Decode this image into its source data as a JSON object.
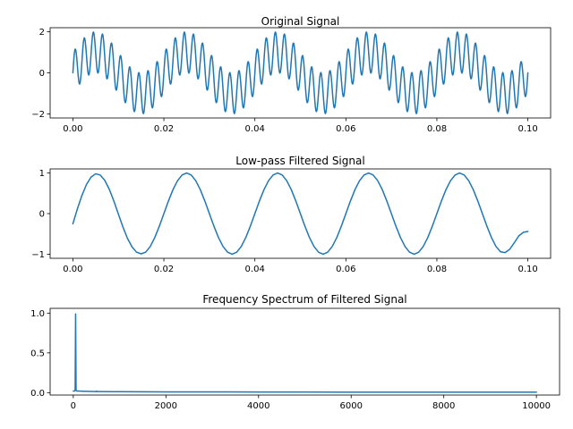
{
  "colors": {
    "series": "#1f77b4"
  },
  "chart_data": [
    {
      "type": "line",
      "title": "Original Signal",
      "xlabel": "",
      "ylabel": "",
      "xlim": [
        -0.005,
        0.105
      ],
      "ylim": [
        -2.2,
        2.2
      ],
      "xticks": [
        0.0,
        0.02,
        0.04,
        0.06,
        0.08,
        0.1
      ],
      "xtick_labels": [
        "0.00",
        "0.02",
        "0.04",
        "0.06",
        "0.08",
        "0.10"
      ],
      "yticks": [
        -2,
        0,
        2
      ],
      "ytick_labels": [
        "−2",
        "0",
        "2"
      ],
      "grid": false,
      "legend": "none",
      "series": [
        {
          "formula": "sin(2*pi*50*t) + sin(2*pi*500*t)",
          "x_start": 0.0,
          "x_end": 0.1,
          "x_step": 0.0001
        }
      ]
    },
    {
      "type": "line",
      "title": "Low-pass Filtered Signal",
      "xlabel": "",
      "ylabel": "",
      "xlim": [
        -0.005,
        0.105
      ],
      "ylim": [
        -1.1,
        1.1
      ],
      "xticks": [
        0.0,
        0.02,
        0.04,
        0.06,
        0.08,
        0.1
      ],
      "xtick_labels": [
        "0.00",
        "0.02",
        "0.04",
        "0.06",
        "0.08",
        "0.10"
      ],
      "yticks": [
        -1,
        0,
        1
      ],
      "ytick_labels": [
        "−1",
        "0",
        "1"
      ],
      "grid": false,
      "legend": "none",
      "series": [
        {
          "x": [
            0.0,
            0.001,
            0.002,
            0.003,
            0.004,
            0.005,
            0.006,
            0.007,
            0.008,
            0.009,
            0.01,
            0.011,
            0.012,
            0.013,
            0.014,
            0.015,
            0.016,
            0.017,
            0.018,
            0.019,
            0.02,
            0.021,
            0.022,
            0.023,
            0.024,
            0.025,
            0.026,
            0.027,
            0.028,
            0.029,
            0.03,
            0.031,
            0.032,
            0.033,
            0.034,
            0.035,
            0.036,
            0.037,
            0.038,
            0.039,
            0.04,
            0.041,
            0.042,
            0.043,
            0.044,
            0.045,
            0.046,
            0.047,
            0.048,
            0.049,
            0.05,
            0.051,
            0.052,
            0.053,
            0.054,
            0.055,
            0.056,
            0.057,
            0.058,
            0.059,
            0.06,
            0.061,
            0.062,
            0.063,
            0.064,
            0.065,
            0.066,
            0.067,
            0.068,
            0.069,
            0.07,
            0.071,
            0.072,
            0.073,
            0.074,
            0.075,
            0.076,
            0.077,
            0.078,
            0.079,
            0.08,
            0.081,
            0.082,
            0.083,
            0.084,
            0.085,
            0.086,
            0.087,
            0.088,
            0.089,
            0.09,
            0.091,
            0.092,
            0.093,
            0.094,
            0.095,
            0.096,
            0.097,
            0.098,
            0.099,
            0.1
          ],
          "y": [
            -0.25,
            0.12,
            0.45,
            0.72,
            0.9,
            0.98,
            0.95,
            0.82,
            0.6,
            0.31,
            -0.01,
            -0.33,
            -0.61,
            -0.82,
            -0.95,
            -0.99,
            -0.95,
            -0.81,
            -0.59,
            -0.31,
            0.0,
            0.31,
            0.59,
            0.81,
            0.95,
            1.0,
            0.95,
            0.81,
            0.59,
            0.31,
            0.0,
            -0.31,
            -0.59,
            -0.81,
            -0.95,
            -1.0,
            -0.95,
            -0.81,
            -0.59,
            -0.31,
            0.0,
            0.31,
            0.59,
            0.81,
            0.95,
            1.0,
            0.95,
            0.81,
            0.59,
            0.31,
            0.0,
            -0.31,
            -0.59,
            -0.81,
            -0.95,
            -1.0,
            -0.95,
            -0.81,
            -0.59,
            -0.31,
            0.0,
            0.31,
            0.59,
            0.81,
            0.95,
            1.0,
            0.95,
            0.81,
            0.59,
            0.31,
            0.0,
            -0.31,
            -0.59,
            -0.81,
            -0.95,
            -1.0,
            -0.95,
            -0.81,
            -0.59,
            -0.31,
            0.0,
            0.31,
            0.59,
            0.81,
            0.95,
            1.0,
            0.95,
            0.81,
            0.59,
            0.31,
            0.0,
            -0.31,
            -0.59,
            -0.81,
            -0.94,
            -0.96,
            -0.88,
            -0.72,
            -0.55,
            -0.46,
            -0.44
          ]
        }
      ]
    },
    {
      "type": "line",
      "title": "Frequency Spectrum of Filtered Signal",
      "xlabel": "",
      "ylabel": "",
      "xlim": [
        -500,
        10500
      ],
      "ylim": [
        -0.03,
        1.06
      ],
      "xticks": [
        0,
        2000,
        4000,
        6000,
        8000,
        10000
      ],
      "xtick_labels": [
        "0",
        "2000",
        "4000",
        "6000",
        "8000",
        "10000"
      ],
      "yticks": [
        0.0,
        0.5,
        1.0
      ],
      "ytick_labels": [
        "0.0",
        "0.5",
        "1.0"
      ],
      "grid": false,
      "legend": "none",
      "series": [
        {
          "x": [
            0,
            10,
            20,
            30,
            40,
            50,
            60,
            70,
            80,
            100,
            200,
            300,
            400,
            490,
            500,
            510,
            600,
            1000,
            2000,
            3000,
            4000,
            5000,
            6000,
            7000,
            8000,
            9000,
            10000
          ],
          "y": [
            0.02,
            0.02,
            0.02,
            0.02,
            0.03,
            0.99,
            0.03,
            0.02,
            0.02,
            0.02,
            0.018,
            0.016,
            0.015,
            0.014,
            0.02,
            0.014,
            0.013,
            0.012,
            0.01,
            0.009,
            0.008,
            0.008,
            0.007,
            0.007,
            0.006,
            0.006,
            0.006
          ]
        }
      ]
    }
  ]
}
